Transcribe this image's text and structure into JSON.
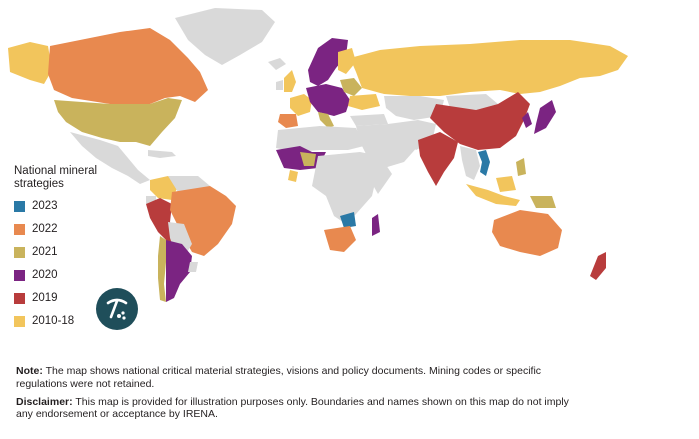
{
  "legend": {
    "title": "National mineral strategies",
    "items": [
      {
        "label": "2023",
        "color": "#2a79a6"
      },
      {
        "label": "2022",
        "color": "#e8894f"
      },
      {
        "label": "2021",
        "color": "#c9b35c"
      },
      {
        "label": "2020",
        "color": "#7b2482"
      },
      {
        "label": "2019",
        "color": "#b83c3c"
      },
      {
        "label": "2010-18",
        "color": "#f2c55c"
      }
    ]
  },
  "base_color": "#d9d9d9",
  "icon": {
    "name": "pickaxe-icon",
    "bg_color": "#1f4e5a"
  },
  "notes": {
    "note_label": "Note:",
    "note_text": " The map shows national critical material strategies, visions and policy documents. Mining codes or specific regulations were not retained.",
    "disclaimer_label": "Disclaimer:",
    "disclaimer_text": " This map is provided for illustration purposes only. Boundaries and names shown on this map do not imply any endorsement or acceptance by IRENA."
  }
}
